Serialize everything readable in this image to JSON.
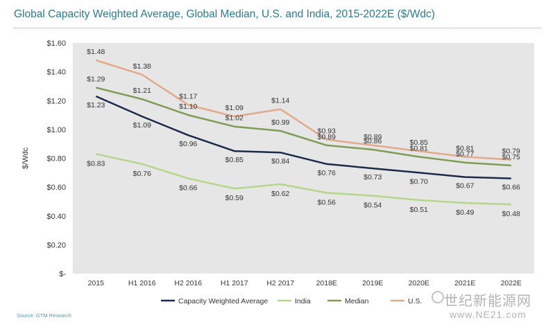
{
  "chart_data": {
    "type": "line",
    "title": "Global Capacity Weighted Average, Global Median, U.S. and India, 2015-2022E ($/Wdc)",
    "xlabel": "",
    "ylabel": "$/Wdc",
    "categories": [
      "2015",
      "H1 2016",
      "H2 2016",
      "H1 2017",
      "H2 2017",
      "2018E",
      "2019E",
      "2020E",
      "2021E",
      "2022E"
    ],
    "ylim": [
      0,
      1.6
    ],
    "yticks": [
      0,
      0.2,
      0.4,
      0.6,
      0.8,
      1.0,
      1.2,
      1.4,
      1.6
    ],
    "ytick_labels": [
      "$-",
      "$0.20",
      "$0.40",
      "$0.60",
      "$0.80",
      "$1.00",
      "$1.20",
      "$1.40",
      "$1.60"
    ],
    "grid": false,
    "legend_position": "bottom",
    "series": [
      {
        "name": "Capacity Weighted Average",
        "color": "#1b2a4a",
        "values": [
          1.23,
          1.09,
          0.96,
          0.85,
          0.84,
          0.76,
          0.73,
          0.7,
          0.67,
          0.66
        ],
        "labels": [
          "$1.23",
          "$1.09",
          "$0.96",
          "$0.85",
          "$0.84",
          "$0.76",
          "$0.73",
          "$0.70",
          "$0.67",
          "$0.66"
        ]
      },
      {
        "name": "India",
        "color": "#b5d68a",
        "values": [
          0.83,
          0.76,
          0.66,
          0.59,
          0.62,
          0.56,
          0.54,
          0.51,
          0.49,
          0.48
        ],
        "labels": [
          "$0.83",
          "$0.76",
          "$0.66",
          "$0.59",
          "$0.62",
          "$0.56",
          "$0.54",
          "$0.51",
          "$0.49",
          "$0.48"
        ]
      },
      {
        "name": "Median",
        "color": "#7f9c55",
        "values": [
          1.29,
          1.21,
          1.1,
          1.02,
          0.99,
          0.89,
          0.86,
          0.81,
          0.77,
          0.75
        ],
        "labels": [
          "$1.29",
          "$1.21",
          "$1.10",
          "$1.02",
          "$0.99",
          "$0.89",
          "$0.86",
          "$0.81",
          "$0.77",
          "$0.75"
        ]
      },
      {
        "name": "U.S.",
        "color": "#e2a98a",
        "values": [
          1.48,
          1.38,
          1.17,
          1.09,
          1.14,
          0.93,
          0.89,
          0.85,
          0.81,
          0.79
        ],
        "labels": [
          "$1.48",
          "$1.38",
          "$1.17",
          "$1.09",
          "$1.14",
          "$0.93",
          "$0.89",
          "$0.85",
          "$0.81",
          "$0.79"
        ]
      }
    ],
    "plot_background": "#e6e6e6"
  },
  "source": "Source: GTM Research",
  "watermark": {
    "line1": "世纪新能源网",
    "line2": "www.NE21.com"
  }
}
